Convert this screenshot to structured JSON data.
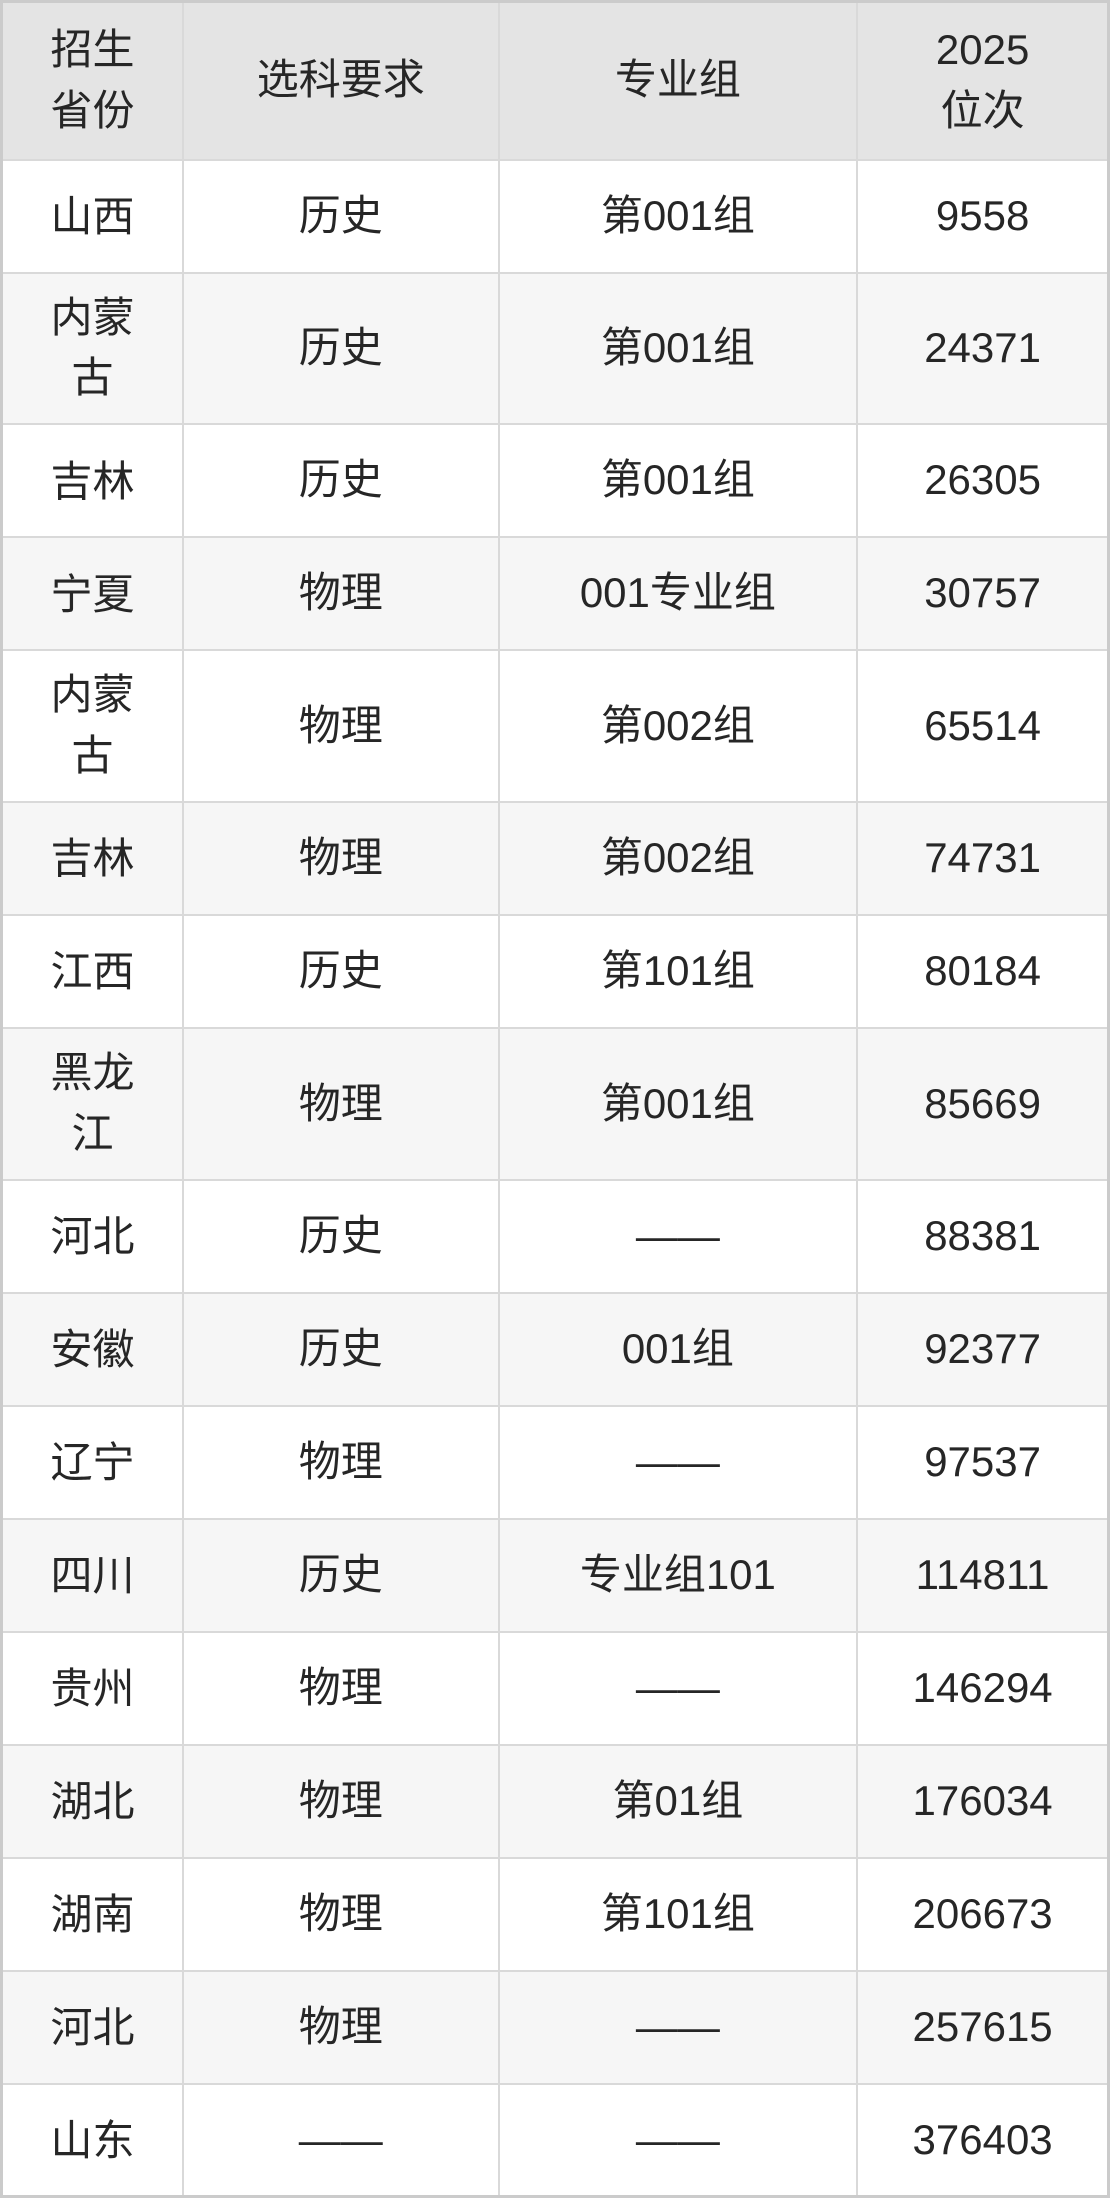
{
  "colors": {
    "header_bg": "#e4e4e4",
    "row_alt_bg": "#f6f6f6",
    "row_bg": "#ffffff",
    "border_color": "#d9d9d9",
    "outer_border_color": "#cbcbcb",
    "text_color": "#262626"
  },
  "table": {
    "columns": [
      {
        "key": "province",
        "label": "招生\n省份"
      },
      {
        "key": "subjects",
        "label": "选科要求"
      },
      {
        "key": "group",
        "label": "专业组"
      },
      {
        "key": "rank",
        "label": "2025\n位次"
      }
    ],
    "rows": [
      {
        "province": "山西",
        "subjects": "历史",
        "group": "第001组",
        "rank": "9558"
      },
      {
        "province": "内蒙古",
        "subjects": "历史",
        "group": "第001组",
        "rank": "24371"
      },
      {
        "province": "吉林",
        "subjects": "历史",
        "group": "第001组",
        "rank": "26305"
      },
      {
        "province": "宁夏",
        "subjects": "物理",
        "group": "001专业组",
        "rank": "30757"
      },
      {
        "province": "内蒙古",
        "subjects": "物理",
        "group": "第002组",
        "rank": "65514"
      },
      {
        "province": "吉林",
        "subjects": "物理",
        "group": "第002组",
        "rank": "74731"
      },
      {
        "province": "江西",
        "subjects": "历史",
        "group": "第101组",
        "rank": "80184"
      },
      {
        "province": "黑龙江",
        "subjects": "物理",
        "group": "第001组",
        "rank": "85669"
      },
      {
        "province": "河北",
        "subjects": "历史",
        "group": "——",
        "rank": "88381"
      },
      {
        "province": "安徽",
        "subjects": "历史",
        "group": "001组",
        "rank": "92377"
      },
      {
        "province": "辽宁",
        "subjects": "物理",
        "group": "——",
        "rank": "97537"
      },
      {
        "province": "四川",
        "subjects": "历史",
        "group": "专业组101",
        "rank": "114811"
      },
      {
        "province": "贵州",
        "subjects": "物理",
        "group": "——",
        "rank": "146294"
      },
      {
        "province": "湖北",
        "subjects": "物理",
        "group": "第01组",
        "rank": "176034"
      },
      {
        "province": "湖南",
        "subjects": "物理",
        "group": "第101组",
        "rank": "206673"
      },
      {
        "province": "河北",
        "subjects": "物理",
        "group": "——",
        "rank": "257615"
      },
      {
        "province": "山东",
        "subjects": "——",
        "group": "——",
        "rank": "376403"
      }
    ]
  }
}
